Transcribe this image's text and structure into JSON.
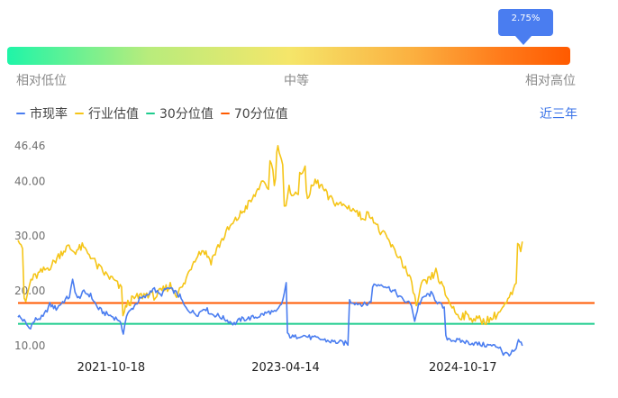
{
  "gauge": {
    "tooltip_value": "2.75%",
    "percentile": 0.96,
    "label_low": "相对低位",
    "label_mid": "中等",
    "label_high": "相对高位"
  },
  "legend": {
    "items": [
      {
        "label": "市现率",
        "color": "#4a7df0"
      },
      {
        "label": "行业估值",
        "color": "#f5c518"
      },
      {
        "label": "30分位值",
        "color": "#1fcc8e"
      },
      {
        "label": "70分位值",
        "color": "#ff5a00"
      }
    ]
  },
  "range_selector": {
    "label": "近三年"
  },
  "chart_data": {
    "type": "line",
    "y_ticks": [
      "46.46",
      "40.00",
      "30.00",
      "20.00",
      "10.00"
    ],
    "ylim": [
      10,
      46.46
    ],
    "x_ticks": [
      "2021-10-18",
      "2023-04-14",
      "2024-10-17"
    ],
    "x_start": "2021-01-01",
    "x_end": "2025-12-01",
    "series": [
      {
        "name": "市现率",
        "color": "#4a7df0",
        "points": [
          [
            "2021-01-01",
            15.5
          ],
          [
            "2021-01-20",
            14.5
          ],
          [
            "2021-02-05",
            13.2
          ],
          [
            "2021-02-25",
            14.8
          ],
          [
            "2021-03-20",
            15.2
          ],
          [
            "2021-04-10",
            17.5
          ],
          [
            "2021-04-30",
            16.8
          ],
          [
            "2021-05-20",
            18.0
          ],
          [
            "2021-06-10",
            19.0
          ],
          [
            "2021-06-20",
            21.8
          ],
          [
            "2021-07-05",
            18.5
          ],
          [
            "2021-07-25",
            19.8
          ],
          [
            "2021-08-15",
            19.2
          ],
          [
            "2021-09-05",
            17.0
          ],
          [
            "2021-09-25",
            16.0
          ],
          [
            "2021-10-15",
            15.5
          ],
          [
            "2021-11-10",
            14.8
          ],
          [
            "2021-11-25",
            12.5
          ],
          [
            "2021-12-05",
            15.5
          ],
          [
            "2021-12-25",
            17.0
          ],
          [
            "2022-01-15",
            18.5
          ],
          [
            "2022-02-05",
            19.0
          ],
          [
            "2022-02-25",
            20.5
          ],
          [
            "2022-03-20",
            19.2
          ],
          [
            "2022-04-10",
            20.5
          ],
          [
            "2022-05-01",
            20.0
          ],
          [
            "2022-05-20",
            19.0
          ],
          [
            "2022-06-05",
            17.0
          ],
          [
            "2022-06-25",
            16.2
          ],
          [
            "2022-07-15",
            15.8
          ],
          [
            "2022-08-05",
            17.0
          ],
          [
            "2022-08-25",
            15.8
          ],
          [
            "2022-09-15",
            15.5
          ],
          [
            "2022-10-10",
            14.8
          ],
          [
            "2022-11-05",
            14.0
          ],
          [
            "2022-11-25",
            14.8
          ],
          [
            "2022-12-20",
            15.0
          ],
          [
            "2023-01-15",
            15.3
          ],
          [
            "2023-02-05",
            15.8
          ],
          [
            "2023-02-25",
            16.2
          ],
          [
            "2023-03-15",
            16.0
          ],
          [
            "2023-04-01",
            17.5
          ],
          [
            "2023-04-10",
            19.5
          ],
          [
            "2023-04-16",
            21.5
          ],
          [
            "2023-04-20",
            12.0
          ],
          [
            "2023-05-10",
            11.5
          ],
          [
            "2023-06-01",
            12.0
          ],
          [
            "2023-07-01",
            11.5
          ],
          [
            "2023-08-01",
            11.2
          ],
          [
            "2023-09-01",
            10.8
          ],
          [
            "2023-10-01",
            10.6
          ],
          [
            "2023-10-25",
            10.4
          ],
          [
            "2023-10-30",
            18.2
          ],
          [
            "2023-11-20",
            17.8
          ],
          [
            "2023-12-20",
            17.5
          ],
          [
            "2024-01-05",
            18.0
          ],
          [
            "2024-01-10",
            21.0
          ],
          [
            "2024-02-10",
            21.2
          ],
          [
            "2024-03-01",
            20.5
          ],
          [
            "2024-03-20",
            19.8
          ],
          [
            "2024-04-10",
            18.5
          ],
          [
            "2024-05-10",
            17.5
          ],
          [
            "2024-05-20",
            14.5
          ],
          [
            "2024-06-01",
            17.5
          ],
          [
            "2024-06-20",
            19.0
          ],
          [
            "2024-07-10",
            19.5
          ],
          [
            "2024-07-30",
            18.0
          ],
          [
            "2024-08-20",
            16.8
          ],
          [
            "2024-08-25",
            11.5
          ],
          [
            "2024-09-20",
            11.0
          ],
          [
            "2024-10-15",
            10.8
          ],
          [
            "2024-11-15",
            10.5
          ],
          [
            "2024-12-15",
            10.2
          ],
          [
            "2025-01-15",
            10.0
          ],
          [
            "2025-02-10",
            9.8
          ],
          [
            "2025-02-20",
            8.5
          ],
          [
            "2025-03-15",
            8.6
          ],
          [
            "2025-04-01",
            9.2
          ],
          [
            "2025-04-08",
            11.0
          ],
          [
            "2025-04-20",
            10.0
          ]
        ]
      },
      {
        "name": "行业估值",
        "color": "#f5c518",
        "points": [
          [
            "2021-01-01",
            30.0
          ],
          [
            "2021-01-15",
            28.0
          ],
          [
            "2021-01-25",
            18.0
          ],
          [
            "2021-02-10",
            22.0
          ],
          [
            "2021-03-05",
            23.0
          ],
          [
            "2021-03-30",
            24.0
          ],
          [
            "2021-04-20",
            25.0
          ],
          [
            "2021-05-15",
            27.0
          ],
          [
            "2021-06-05",
            28.0
          ],
          [
            "2021-06-25",
            27.2
          ],
          [
            "2021-07-20",
            28.0
          ],
          [
            "2021-08-15",
            26.5
          ],
          [
            "2021-09-05",
            24.5
          ],
          [
            "2021-10-01",
            23.0
          ],
          [
            "2021-10-25",
            22.0
          ],
          [
            "2021-11-15",
            20.5
          ],
          [
            "2021-11-28",
            16.0
          ],
          [
            "2021-12-05",
            17.5
          ],
          [
            "2021-12-25",
            18.5
          ],
          [
            "2022-01-15",
            19.0
          ],
          [
            "2022-02-10",
            19.5
          ],
          [
            "2022-03-05",
            19.0
          ],
          [
            "2022-03-25",
            20.0
          ],
          [
            "2022-04-20",
            21.0
          ],
          [
            "2022-05-10",
            19.5
          ],
          [
            "2022-06-01",
            21.0
          ],
          [
            "2022-06-20",
            24.0
          ],
          [
            "2022-07-10",
            26.5
          ],
          [
            "2022-08-01",
            27.5
          ],
          [
            "2022-08-25",
            25.5
          ],
          [
            "2022-09-20",
            28.5
          ],
          [
            "2022-10-15",
            31.0
          ],
          [
            "2022-11-05",
            32.5
          ],
          [
            "2022-11-25",
            34.0
          ],
          [
            "2022-12-15",
            35.5
          ],
          [
            "2023-01-05",
            37.0
          ],
          [
            "2023-01-25",
            39.5
          ],
          [
            "2023-02-15",
            39.0
          ],
          [
            "2023-03-01",
            43.5
          ],
          [
            "2023-03-10",
            40.0
          ],
          [
            "2023-03-25",
            46.0
          ],
          [
            "2023-04-05",
            43.0
          ],
          [
            "2023-04-15",
            35.0
          ],
          [
            "2023-04-25",
            38.5
          ],
          [
            "2023-05-15",
            37.5
          ],
          [
            "2023-06-10",
            42.0
          ],
          [
            "2023-06-25",
            37.5
          ],
          [
            "2023-07-15",
            40.0
          ],
          [
            "2023-08-05",
            39.0
          ],
          [
            "2023-08-25",
            37.0
          ],
          [
            "2023-09-20",
            36.0
          ],
          [
            "2023-10-15",
            35.5
          ],
          [
            "2023-11-10",
            35.0
          ],
          [
            "2023-12-05",
            33.5
          ],
          [
            "2024-01-05",
            34.0
          ],
          [
            "2024-01-30",
            31.0
          ],
          [
            "2024-02-25",
            29.5
          ],
          [
            "2024-03-15",
            27.5
          ],
          [
            "2024-04-05",
            26.0
          ],
          [
            "2024-04-25",
            23.5
          ],
          [
            "2024-05-15",
            20.5
          ],
          [
            "2024-05-25",
            17.0
          ],
          [
            "2024-06-10",
            21.0
          ],
          [
            "2024-07-05",
            22.0
          ],
          [
            "2024-07-25",
            23.5
          ],
          [
            "2024-08-15",
            20.5
          ],
          [
            "2024-09-05",
            18.0
          ],
          [
            "2024-10-01",
            15.5
          ],
          [
            "2024-10-25",
            15.5
          ],
          [
            "2024-11-20",
            15.0
          ],
          [
            "2024-12-20",
            14.5
          ],
          [
            "2025-01-15",
            15.0
          ],
          [
            "2025-02-05",
            16.0
          ],
          [
            "2025-02-25",
            17.2
          ],
          [
            "2025-03-15",
            19.0
          ],
          [
            "2025-04-01",
            21.0
          ],
          [
            "2025-04-10",
            29.0
          ],
          [
            "2025-04-15",
            26.5
          ],
          [
            "2025-04-20",
            29.0
          ]
        ]
      },
      {
        "name": "30分位值",
        "color": "#1fcc8e",
        "constant": 14.0
      },
      {
        "name": "70分位值",
        "color": "#ff5a00",
        "constant": 17.8
      }
    ]
  }
}
